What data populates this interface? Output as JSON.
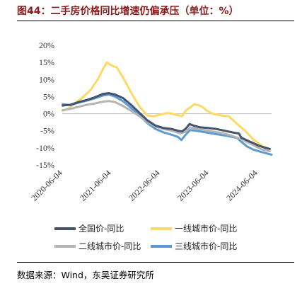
{
  "header": {
    "title": "图44：二手房价格同比增速仍偏承压（单位：%）"
  },
  "footer": {
    "source": "数据来源：Wind，东吴证券研究所"
  },
  "chart_data": {
    "type": "line",
    "title": "图44：二手房价格同比增速仍偏承压（单位：%）",
    "xlabel": "",
    "ylabel": "",
    "ylim": [
      -15,
      20
    ],
    "ytick_values": [
      20,
      15,
      10,
      5,
      0,
      -5,
      -10,
      -15
    ],
    "ytick_labels": [
      "20%",
      "15%",
      "10%",
      "5%",
      "0%",
      "-5%",
      "-10%",
      "-15%"
    ],
    "xtick_dates": [
      "2020-06-04",
      "2021-06-04",
      "2022-06-04",
      "2023-06-04",
      "2024-06-04"
    ],
    "xlim": [
      "2020-06-01",
      "2024-09-15"
    ],
    "grid": false,
    "zero_line": true,
    "legend_position": "bottom",
    "series": [
      {
        "name": "全国价-同比",
        "color": "#44546a",
        "points": [
          [
            "2020-06-04",
            2.4
          ],
          [
            "2020-08-01",
            2.6
          ],
          [
            "2020-10-01",
            3.4
          ],
          [
            "2020-12-01",
            4.0
          ],
          [
            "2021-02-01",
            4.8
          ],
          [
            "2021-04-01",
            5.8
          ],
          [
            "2021-05-15",
            6.0
          ],
          [
            "2021-07-01",
            5.6
          ],
          [
            "2021-09-01",
            4.5
          ],
          [
            "2021-11-01",
            2.5
          ],
          [
            "2022-01-01",
            0.2
          ],
          [
            "2022-03-01",
            -2.0
          ],
          [
            "2022-05-01",
            -3.5
          ],
          [
            "2022-07-01",
            -4.2
          ],
          [
            "2022-09-01",
            -4.5
          ],
          [
            "2022-10-15",
            -5.0
          ],
          [
            "2022-11-15",
            -5.2
          ],
          [
            "2022-12-15",
            -4.3
          ],
          [
            "2023-01-10",
            -3.0
          ],
          [
            "2023-02-10",
            -3.5
          ],
          [
            "2023-04-01",
            -4.0
          ],
          [
            "2023-06-01",
            -4.2
          ],
          [
            "2023-08-01",
            -4.5
          ],
          [
            "2023-10-01",
            -5.0
          ],
          [
            "2023-12-01",
            -5.5
          ],
          [
            "2024-01-15",
            -5.8
          ],
          [
            "2024-02-01",
            -7.0
          ],
          [
            "2024-03-15",
            -7.8
          ],
          [
            "2024-05-01",
            -8.6
          ],
          [
            "2024-06-15",
            -9.4
          ],
          [
            "2024-08-01",
            -10.0
          ],
          [
            "2024-09-01",
            -10.3
          ]
        ]
      },
      {
        "name": "一线城市价-同比",
        "color": "#ffd966",
        "points": [
          [
            "2020-06-04",
            0.8
          ],
          [
            "2020-07-15",
            1.5
          ],
          [
            "2020-09-01",
            3.0
          ],
          [
            "2020-11-01",
            4.8
          ],
          [
            "2021-01-01",
            7.0
          ],
          [
            "2021-03-01",
            10.5
          ],
          [
            "2021-04-01",
            13.0
          ],
          [
            "2021-05-01",
            15.0
          ],
          [
            "2021-06-01",
            14.2
          ],
          [
            "2021-07-15",
            13.5
          ],
          [
            "2021-09-01",
            10.5
          ],
          [
            "2021-11-01",
            6.0
          ],
          [
            "2022-01-01",
            2.0
          ],
          [
            "2022-03-01",
            -0.5
          ],
          [
            "2022-04-15",
            -0.8
          ],
          [
            "2022-06-01",
            -0.3
          ],
          [
            "2022-08-01",
            0.2
          ],
          [
            "2022-10-01",
            -0.3
          ],
          [
            "2022-11-15",
            -0.8
          ],
          [
            "2022-12-15",
            1.0
          ],
          [
            "2023-01-15",
            1.8
          ],
          [
            "2023-02-15",
            2.8
          ],
          [
            "2023-03-15",
            2.5
          ],
          [
            "2023-04-15",
            2.0
          ],
          [
            "2023-05-15",
            1.0
          ],
          [
            "2023-07-01",
            0.0
          ],
          [
            "2023-09-01",
            -0.5
          ],
          [
            "2023-11-01",
            -0.8
          ],
          [
            "2024-01-01",
            -3.0
          ],
          [
            "2024-03-01",
            -5.0
          ],
          [
            "2024-05-01",
            -7.5
          ],
          [
            "2024-07-01",
            -9.3
          ],
          [
            "2024-09-01",
            -10.4
          ]
        ]
      },
      {
        "name": "二线城市价-同比",
        "color": "#b4b4b4",
        "points": [
          [
            "2020-06-04",
            1.0
          ],
          [
            "2020-08-01",
            1.4
          ],
          [
            "2020-10-01",
            2.0
          ],
          [
            "2020-12-01",
            2.6
          ],
          [
            "2021-02-01",
            3.0
          ],
          [
            "2021-04-01",
            3.5
          ],
          [
            "2021-05-15",
            3.7
          ],
          [
            "2021-07-01",
            3.4
          ],
          [
            "2021-09-01",
            2.2
          ],
          [
            "2021-11-01",
            0.8
          ],
          [
            "2022-01-01",
            -0.8
          ],
          [
            "2022-03-01",
            -2.5
          ],
          [
            "2022-05-01",
            -3.8
          ],
          [
            "2022-07-01",
            -4.5
          ],
          [
            "2022-09-01",
            -5.0
          ],
          [
            "2022-11-01",
            -5.8
          ],
          [
            "2022-12-15",
            -5.2
          ],
          [
            "2023-01-15",
            -4.0
          ],
          [
            "2023-03-01",
            -4.4
          ],
          [
            "2023-05-01",
            -4.8
          ],
          [
            "2023-07-01",
            -5.2
          ],
          [
            "2023-09-01",
            -5.6
          ],
          [
            "2023-11-01",
            -6.2
          ],
          [
            "2024-01-01",
            -7.0
          ],
          [
            "2024-03-01",
            -8.0
          ],
          [
            "2024-05-01",
            -9.2
          ],
          [
            "2024-07-01",
            -10.4
          ],
          [
            "2024-09-01",
            -11.0
          ]
        ]
      },
      {
        "name": "三线城市价-同比",
        "color": "#5b9bd5",
        "points": [
          [
            "2020-06-04",
            2.8
          ],
          [
            "2020-08-01",
            2.5
          ],
          [
            "2020-10-01",
            3.2
          ],
          [
            "2020-12-01",
            3.8
          ],
          [
            "2021-02-01",
            4.5
          ],
          [
            "2021-04-01",
            5.3
          ],
          [
            "2021-05-15",
            5.6
          ],
          [
            "2021-07-01",
            5.0
          ],
          [
            "2021-09-01",
            3.6
          ],
          [
            "2021-11-01",
            1.6
          ],
          [
            "2022-01-01",
            -0.6
          ],
          [
            "2022-03-01",
            -2.8
          ],
          [
            "2022-05-01",
            -4.5
          ],
          [
            "2022-07-01",
            -5.5
          ],
          [
            "2022-09-01",
            -6.2
          ],
          [
            "2022-10-15",
            -6.8
          ],
          [
            "2022-11-10",
            -7.7
          ],
          [
            "2022-12-15",
            -6.0
          ],
          [
            "2023-01-15",
            -4.8
          ],
          [
            "2023-03-01",
            -5.0
          ],
          [
            "2023-05-01",
            -5.4
          ],
          [
            "2023-07-01",
            -5.8
          ],
          [
            "2023-09-01",
            -6.2
          ],
          [
            "2023-11-01",
            -6.6
          ],
          [
            "2024-01-01",
            -7.1
          ],
          [
            "2024-02-01",
            -8.2
          ],
          [
            "2024-03-15",
            -9.6
          ],
          [
            "2024-05-01",
            -10.5
          ],
          [
            "2024-07-01",
            -11.2
          ],
          [
            "2024-09-15",
            -12.0
          ]
        ]
      }
    ]
  }
}
